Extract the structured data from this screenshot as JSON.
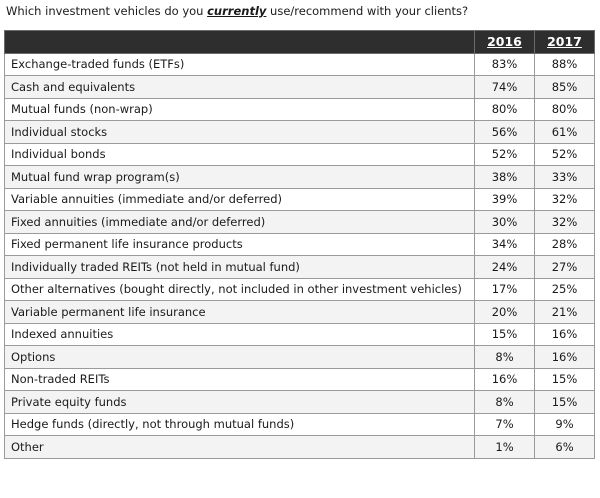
{
  "question": {
    "prefix": "Which investment vehicles do you ",
    "emphasis": "currently",
    "suffix": " use/recommend with your clients?"
  },
  "chart_data": {
    "type": "table",
    "columns": [
      "2016",
      "2017"
    ],
    "rows": [
      {
        "label": "Exchange-traded funds (ETFs)",
        "values": [
          "83%",
          "88%"
        ]
      },
      {
        "label": "Cash and equivalents",
        "values": [
          "74%",
          "85%"
        ]
      },
      {
        "label": "Mutual funds (non-wrap)",
        "values": [
          "80%",
          "80%"
        ]
      },
      {
        "label": "Individual stocks",
        "values": [
          "56%",
          "61%"
        ]
      },
      {
        "label": "Individual bonds",
        "values": [
          "52%",
          "52%"
        ]
      },
      {
        "label": "Mutual fund wrap program(s)",
        "values": [
          "38%",
          "33%"
        ]
      },
      {
        "label": "Variable annuities (immediate and/or deferred)",
        "values": [
          "39%",
          "32%"
        ]
      },
      {
        "label": "Fixed annuities (immediate and/or deferred)",
        "values": [
          "30%",
          "32%"
        ]
      },
      {
        "label": "Fixed permanent life insurance products",
        "values": [
          "34%",
          "28%"
        ]
      },
      {
        "label": "Individually traded REITs (not held in mutual fund)",
        "values": [
          "24%",
          "27%"
        ]
      },
      {
        "label": "Other alternatives (bought directly, not included in other investment vehicles)",
        "values": [
          "17%",
          "25%"
        ]
      },
      {
        "label": "Variable permanent life insurance",
        "values": [
          "20%",
          "21%"
        ]
      },
      {
        "label": "Indexed annuities",
        "values": [
          "15%",
          "16%"
        ]
      },
      {
        "label": "Options",
        "values": [
          "8%",
          "16%"
        ]
      },
      {
        "label": "Non-traded REITs",
        "values": [
          "16%",
          "15%"
        ]
      },
      {
        "label": "Private equity funds",
        "values": [
          "8%",
          "15%"
        ]
      },
      {
        "label": "Hedge funds (directly, not through mutual funds)",
        "values": [
          "7%",
          "9%"
        ]
      },
      {
        "label": "Other",
        "values": [
          "1%",
          "6%"
        ]
      }
    ]
  }
}
